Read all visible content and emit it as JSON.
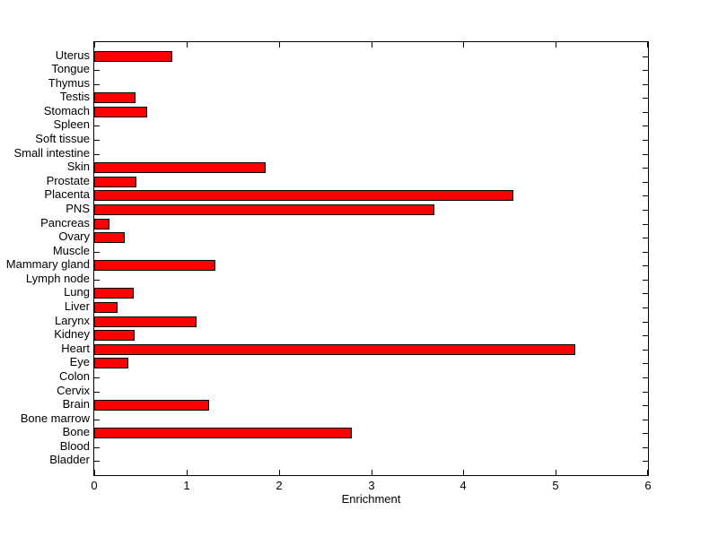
{
  "chart_data": {
    "type": "bar",
    "orientation": "horizontal",
    "title": "",
    "xlabel": "Enrichment",
    "ylabel": "",
    "xlim": [
      0,
      6
    ],
    "x_ticks": [
      0,
      1,
      2,
      3,
      4,
      5,
      6
    ],
    "grid": false,
    "legend": "none",
    "bar_color": "#FF0000",
    "bar_edge_color": "#000000",
    "axis_color": "#000000",
    "background_color": "#FFFFFF",
    "categories_top_to_bottom": [
      "Uterus",
      "Tongue",
      "Thymus",
      "Testis",
      "Stomach",
      "Spleen",
      "Soft tissue",
      "Small intestine",
      "Skin",
      "Prostate",
      "Placenta",
      "PNS",
      "Pancreas",
      "Ovary",
      "Muscle",
      "Mammary gland",
      "Lymph node",
      "Lung",
      "Liver",
      "Larynx",
      "Kidney",
      "Heart",
      "Eye",
      "Colon",
      "Cervix",
      "Brain",
      "Bone marrow",
      "Bone",
      "Blood",
      "Bladder"
    ],
    "values": [
      0.85,
      0,
      0,
      0.45,
      0.57,
      0,
      0,
      0,
      1.86,
      0.46,
      4.54,
      3.69,
      0.17,
      0.33,
      0,
      1.31,
      0,
      0.43,
      0.25,
      1.11,
      0.44,
      5.21,
      0.37,
      0,
      0,
      1.24,
      0,
      2.79,
      0,
      0
    ]
  }
}
